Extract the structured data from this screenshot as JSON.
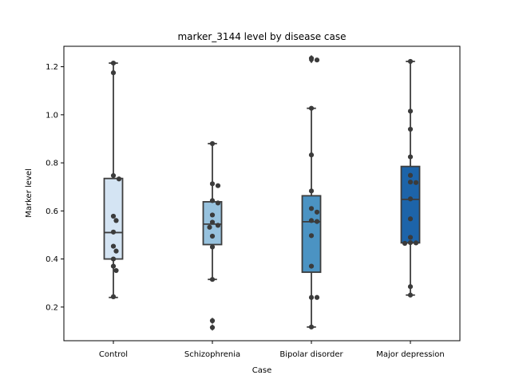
{
  "chart_data": {
    "type": "box",
    "title": "marker_3144 level by disease case",
    "xlabel": "Case",
    "ylabel": "Marker level",
    "categories": [
      "Control",
      "Schizophrenia",
      "Bipolar disorder",
      "Major depression"
    ],
    "ylim": [
      0.06,
      1.285
    ],
    "yticks": [
      0.2,
      0.4,
      0.6,
      0.8,
      1.0,
      1.2
    ],
    "ytick_labels": [
      "0.2",
      "0.4",
      "0.6",
      "0.8",
      "1.0",
      "1.2"
    ],
    "grid": false,
    "colors": [
      "#d4e4f3",
      "#97c2de",
      "#4b93c3",
      "#1d64a9"
    ],
    "boxes": [
      {
        "category": "Control",
        "whisker_low": 0.24,
        "q1": 0.4,
        "median": 0.51,
        "q3": 0.735,
        "whisker_high": 1.215,
        "outliers": []
      },
      {
        "category": "Schizophrenia",
        "whisker_low": 0.315,
        "q1": 0.46,
        "median": 0.545,
        "q3": 0.638,
        "whisker_high": 0.88,
        "outliers": [
          0.143,
          0.115
        ]
      },
      {
        "category": "Bipolar disorder",
        "whisker_low": 0.117,
        "q1": 0.345,
        "median": 0.555,
        "q3": 0.663,
        "whisker_high": 1.027,
        "outliers": [
          1.235,
          1.228
        ]
      },
      {
        "category": "Major depression",
        "whisker_low": 0.25,
        "q1": 0.467,
        "median": 0.648,
        "q3": 0.785,
        "whisker_high": 1.222,
        "outliers": []
      }
    ],
    "points": [
      {
        "category": "Control",
        "values": [
          1.215,
          1.175,
          0.747,
          0.733,
          0.578,
          0.56,
          0.512,
          0.453,
          0.433,
          0.4,
          0.37,
          0.352,
          0.243
        ]
      },
      {
        "category": "Schizophrenia",
        "values": [
          0.88,
          0.713,
          0.705,
          0.643,
          0.633,
          0.583,
          0.553,
          0.54,
          0.532,
          0.495,
          0.45,
          0.315,
          0.143,
          0.115
        ]
      },
      {
        "category": "Bipolar disorder",
        "values": [
          1.235,
          1.228,
          1.027,
          0.833,
          0.683,
          0.61,
          0.595,
          0.56,
          0.556,
          0.497,
          0.37,
          0.24,
          0.24,
          0.117
        ]
      },
      {
        "category": "Major depression",
        "values": [
          1.222,
          1.015,
          0.94,
          0.825,
          0.748,
          0.72,
          0.718,
          0.65,
          0.567,
          0.49,
          0.468,
          0.467,
          0.465,
          0.285,
          0.25
        ]
      }
    ]
  }
}
